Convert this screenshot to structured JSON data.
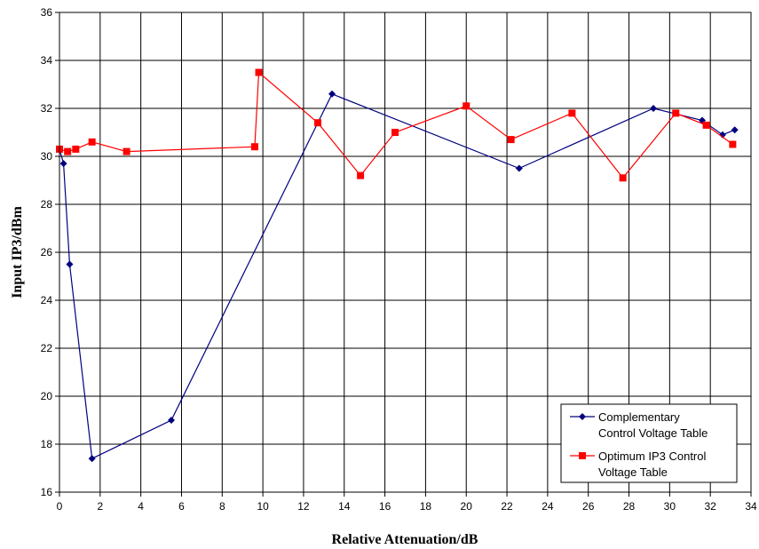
{
  "chart_data": {
    "type": "line",
    "title": "",
    "xlabel": "Relative Attenuation/dB",
    "ylabel": "Input IP3/dBm",
    "xlim": [
      0,
      34
    ],
    "ylim": [
      16,
      36
    ],
    "xticks": [
      0,
      2,
      4,
      6,
      8,
      10,
      12,
      14,
      16,
      18,
      20,
      22,
      24,
      26,
      28,
      30,
      32,
      34
    ],
    "yticks": [
      16,
      18,
      20,
      22,
      24,
      26,
      28,
      30,
      32,
      34,
      36
    ],
    "grid": true,
    "legend_position": "bottom-right",
    "series": [
      {
        "name": "Complementary Control Voltage Table",
        "legend_lines": [
          "Complementary",
          "Control Voltage Table"
        ],
        "color": "#00007f",
        "marker": "diamond",
        "x": [
          0.0,
          0.2,
          0.5,
          1.6,
          5.5,
          13.4,
          22.6,
          29.2,
          31.6,
          32.6,
          33.2
        ],
        "y": [
          30.3,
          29.7,
          25.5,
          17.4,
          19.0,
          32.6,
          29.5,
          32.0,
          31.5,
          30.9,
          31.1
        ]
      },
      {
        "name": "Optimum IP3 Control Voltage Table",
        "legend_lines": [
          "Optimum IP3 Control",
          "Voltage Table"
        ],
        "color": "#ff0000",
        "marker": "square",
        "x": [
          0.0,
          0.4,
          0.8,
          1.6,
          3.3,
          9.6,
          9.8,
          12.7,
          14.8,
          16.5,
          20.0,
          22.2,
          25.2,
          27.7,
          30.3,
          31.8,
          33.1
        ],
        "y": [
          30.3,
          30.2,
          30.3,
          30.6,
          30.2,
          30.4,
          33.5,
          31.4,
          29.2,
          31.0,
          32.1,
          30.7,
          31.8,
          29.1,
          31.8,
          31.3,
          30.5
        ]
      }
    ]
  }
}
